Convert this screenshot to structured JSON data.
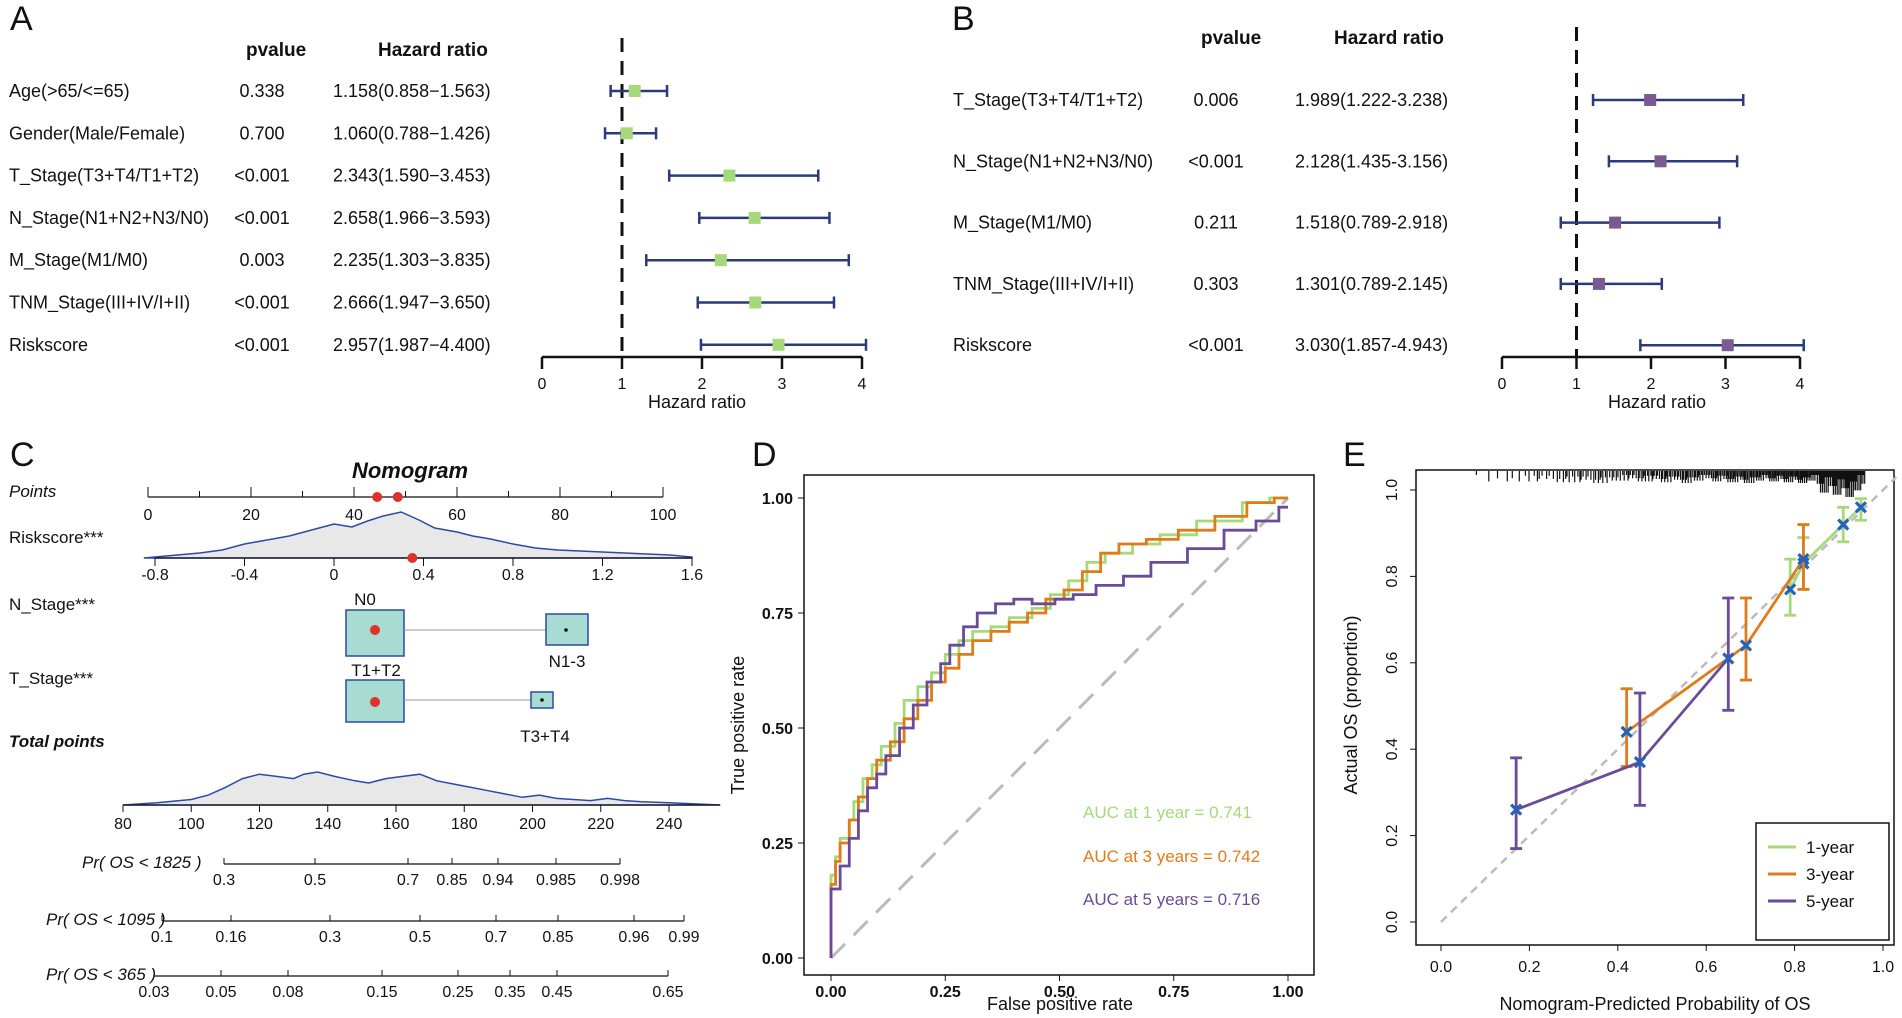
{
  "panels": {
    "a": "A",
    "b": "B",
    "c": "C",
    "d": "D",
    "e": "E"
  },
  "chart_data": [
    {
      "type": "forest",
      "panel": "A",
      "headers": {
        "pvalue": "pvalue",
        "hr": "Hazard ratio"
      },
      "xlabel": "Hazard ratio",
      "xlim": [
        0,
        4
      ],
      "xticks": [
        "0",
        "1",
        "2",
        "3",
        "4"
      ],
      "reference": 1,
      "rows": [
        {
          "label": "Age(>65/<=65)",
          "p": "0.338",
          "hr_text": "1.158(0.858−1.563)",
          "hr": 1.158,
          "lo": 0.858,
          "hi": 1.563
        },
        {
          "label": "Gender(Male/Female)",
          "p": "0.700",
          "hr_text": "1.060(0.788−1.426)",
          "hr": 1.06,
          "lo": 0.788,
          "hi": 1.426
        },
        {
          "label": "T_Stage(T3+T4/T1+T2)",
          "p": "<0.001",
          "hr_text": "2.343(1.590−3.453)",
          "hr": 2.343,
          "lo": 1.59,
          "hi": 3.453
        },
        {
          "label": "N_Stage(N1+N2+N3/N0)",
          "p": "<0.001",
          "hr_text": "2.658(1.966−3.593)",
          "hr": 2.658,
          "lo": 1.966,
          "hi": 3.593
        },
        {
          "label": "M_Stage(M1/M0)",
          "p": "0.003",
          "hr_text": "2.235(1.303−3.835)",
          "hr": 2.235,
          "lo": 1.303,
          "hi": 3.835
        },
        {
          "label": "TNM_Stage(III+IV/I+II)",
          "p": "<0.001",
          "hr_text": "2.666(1.947−3.650)",
          "hr": 2.666,
          "lo": 1.947,
          "hi": 3.65
        },
        {
          "label": "Riskscore",
          "p": "<0.001",
          "hr_text": "2.957(1.987−4.400)",
          "hr": 2.957,
          "lo": 1.987,
          "hi": 4.4
        }
      ]
    },
    {
      "type": "forest",
      "panel": "B",
      "headers": {
        "pvalue": "pvalue",
        "hr": "Hazard ratio"
      },
      "xlabel": "Hazard ratio",
      "xlim": [
        0,
        4
      ],
      "xticks": [
        "0",
        "1",
        "2",
        "3",
        "4"
      ],
      "reference": 1,
      "rows": [
        {
          "label": "T_Stage(T3+T4/T1+T2)",
          "p": "0.006",
          "hr_text": "1.989(1.222-3.238)",
          "hr": 1.989,
          "lo": 1.222,
          "hi": 3.238
        },
        {
          "label": "N_Stage(N1+N2+N3/N0)",
          "p": "<0.001",
          "hr_text": "2.128(1.435-3.156)",
          "hr": 2.128,
          "lo": 1.435,
          "hi": 3.156
        },
        {
          "label": "M_Stage(M1/M0)",
          "p": "0.211",
          "hr_text": "1.518(0.789-2.918)",
          "hr": 1.518,
          "lo": 0.789,
          "hi": 2.918
        },
        {
          "label": "TNM_Stage(III+IV/I+II)",
          "p": "0.303",
          "hr_text": "1.301(0.789-2.145)",
          "hr": 1.301,
          "lo": 0.789,
          "hi": 2.145
        },
        {
          "label": "Riskscore",
          "p": "<0.001",
          "hr_text": "3.030(1.857-4.943)",
          "hr": 3.03,
          "lo": 1.857,
          "hi": 4.943
        }
      ]
    },
    {
      "type": "nomogram",
      "panel": "C",
      "title": "Nomogram",
      "points_label": "Points",
      "points_ticks": [
        "0",
        "20",
        "40",
        "60",
        "80",
        "100"
      ],
      "riskscore_label": "Riskscore***",
      "riskscore_ticks": [
        "-0.8",
        "-0.4",
        "0",
        "0.4",
        "0.8",
        "1.2",
        "1.6"
      ],
      "n_stage_label": "N_Stage***",
      "n_stage_levels": [
        "N0",
        "N1-3"
      ],
      "t_stage_label": "T_Stage***",
      "t_stage_levels": [
        "T1+T2",
        "T3+T4"
      ],
      "total_label": "Total points",
      "total_ticks": [
        "80",
        "100",
        "120",
        "140",
        "160",
        "180",
        "200",
        "220",
        "240"
      ],
      "pr_scales": [
        {
          "label": "Pr( OS < 1825 )",
          "ticks": [
            "0.3",
            "0.5",
            "0.7",
            "0.85",
            "0.94",
            "0.985",
            "0.998"
          ]
        },
        {
          "label": "Pr( OS < 1095 )",
          "ticks": [
            "0.1",
            "0.16",
            "0.3",
            "0.5",
            "0.7",
            "0.85",
            "0.96",
            "0.99"
          ]
        },
        {
          "label": "Pr( OS < 365 )",
          "ticks": [
            "0.03",
            "0.05",
            "0.08",
            "0.15",
            "0.25",
            "0.35",
            "0.45",
            "0.65"
          ]
        }
      ],
      "selected_points": [
        44.5,
        48.5
      ],
      "selected_riskscore": 0.35
    },
    {
      "type": "line",
      "panel": "D",
      "subtype": "roc",
      "xlabel": "False positive rate",
      "ylabel": "True positive rate",
      "xlim": [
        0,
        1
      ],
      "ylim": [
        0,
        1
      ],
      "xticks": [
        "0.00",
        "0.25",
        "0.50",
        "0.75",
        "1.00"
      ],
      "yticks": [
        "0.00",
        "0.25",
        "0.50",
        "0.75",
        "1.00"
      ],
      "series": [
        {
          "name": "AUC at 1 year",
          "auc_label": "AUC at 1 year  = 0.741",
          "color": "#a6d97a",
          "points": [
            [
              0,
              0
            ],
            [
              0,
              0.14
            ],
            [
              0.01,
              0.18
            ],
            [
              0.02,
              0.22
            ],
            [
              0.04,
              0.26
            ],
            [
              0.05,
              0.3
            ],
            [
              0.07,
              0.34
            ],
            [
              0.09,
              0.39
            ],
            [
              0.11,
              0.42
            ],
            [
              0.14,
              0.46
            ],
            [
              0.16,
              0.51
            ],
            [
              0.19,
              0.56
            ],
            [
              0.22,
              0.59
            ],
            [
              0.25,
              0.62
            ],
            [
              0.28,
              0.66
            ],
            [
              0.31,
              0.69
            ],
            [
              0.35,
              0.71
            ],
            [
              0.39,
              0.72
            ],
            [
              0.44,
              0.74
            ],
            [
              0.48,
              0.76
            ],
            [
              0.52,
              0.79
            ],
            [
              0.56,
              0.82
            ],
            [
              0.6,
              0.86
            ],
            [
              0.66,
              0.88
            ],
            [
              0.72,
              0.9
            ],
            [
              0.8,
              0.92
            ],
            [
              0.9,
              0.95
            ],
            [
              0.96,
              0.99
            ],
            [
              1,
              1
            ]
          ]
        },
        {
          "name": "AUC at 3 years",
          "auc_label": "AUC at 3 years = 0.742",
          "color": "#e07b1a",
          "points": [
            [
              0,
              0
            ],
            [
              0,
              0.12
            ],
            [
              0.01,
              0.16
            ],
            [
              0.02,
              0.21
            ],
            [
              0.04,
              0.25
            ],
            [
              0.06,
              0.3
            ],
            [
              0.08,
              0.35
            ],
            [
              0.1,
              0.39
            ],
            [
              0.13,
              0.43
            ],
            [
              0.16,
              0.47
            ],
            [
              0.19,
              0.52
            ],
            [
              0.22,
              0.56
            ],
            [
              0.25,
              0.6
            ],
            [
              0.28,
              0.63
            ],
            [
              0.31,
              0.66
            ],
            [
              0.35,
              0.69
            ],
            [
              0.39,
              0.71
            ],
            [
              0.43,
              0.73
            ],
            [
              0.47,
              0.75
            ],
            [
              0.51,
              0.78
            ],
            [
              0.55,
              0.8
            ],
            [
              0.59,
              0.84
            ],
            [
              0.63,
              0.88
            ],
            [
              0.69,
              0.9
            ],
            [
              0.76,
              0.91
            ],
            [
              0.84,
              0.93
            ],
            [
              0.91,
              0.96
            ],
            [
              0.97,
              0.99
            ],
            [
              1,
              1
            ]
          ]
        },
        {
          "name": "AUC at 5 years",
          "auc_label": "AUC at 5 years = 0.716",
          "color": "#6a4b98",
          "points": [
            [
              0,
              0
            ],
            [
              0,
              0.11
            ],
            [
              0.02,
              0.15
            ],
            [
              0.04,
              0.2
            ],
            [
              0.06,
              0.26
            ],
            [
              0.08,
              0.32
            ],
            [
              0.1,
              0.37
            ],
            [
              0.12,
              0.4
            ],
            [
              0.15,
              0.44
            ],
            [
              0.18,
              0.5
            ],
            [
              0.21,
              0.55
            ],
            [
              0.24,
              0.6
            ],
            [
              0.26,
              0.64
            ],
            [
              0.29,
              0.68
            ],
            [
              0.32,
              0.72
            ],
            [
              0.36,
              0.75
            ],
            [
              0.4,
              0.77
            ],
            [
              0.44,
              0.78
            ],
            [
              0.49,
              0.77
            ],
            [
              0.53,
              0.78
            ],
            [
              0.58,
              0.79
            ],
            [
              0.64,
              0.81
            ],
            [
              0.7,
              0.83
            ],
            [
              0.78,
              0.86
            ],
            [
              0.86,
              0.89
            ],
            [
              0.93,
              0.93
            ],
            [
              0.98,
              0.95
            ],
            [
              1,
              0.98
            ]
          ]
        }
      ]
    },
    {
      "type": "line",
      "panel": "E",
      "subtype": "calibration",
      "xlabel": "Nomogram-Predicted Probability of OS",
      "ylabel": "Actual OS (proportion)",
      "xlim": [
        0,
        1
      ],
      "ylim": [
        0,
        1
      ],
      "xticks": [
        "0.0",
        "0.2",
        "0.4",
        "0.6",
        "0.8",
        "1.0"
      ],
      "yticks": [
        "0.0",
        "0.2",
        "0.4",
        "0.6",
        "0.8",
        "1.0"
      ],
      "series": [
        {
          "name": "1-year",
          "color": "#a6d97a",
          "points": [
            {
              "x": 0.79,
              "y": 0.77,
              "lo": 0.71,
              "hi": 0.84
            },
            {
              "x": 0.82,
              "y": 0.83,
              "lo": 0.77,
              "hi": 0.89
            },
            {
              "x": 0.91,
              "y": 0.92,
              "lo": 0.88,
              "hi": 0.96
            },
            {
              "x": 0.95,
              "y": 0.96,
              "lo": 0.93,
              "hi": 0.98
            }
          ]
        },
        {
          "name": "3-year",
          "color": "#e07b1a",
          "points": [
            {
              "x": 0.42,
              "y": 0.44,
              "lo": 0.36,
              "hi": 0.54
            },
            {
              "x": 0.69,
              "y": 0.64,
              "lo": 0.56,
              "hi": 0.75
            },
            {
              "x": 0.82,
              "y": 0.84,
              "lo": 0.77,
              "hi": 0.92
            }
          ]
        },
        {
          "name": "5-year",
          "color": "#6a4b98",
          "points": [
            {
              "x": 0.17,
              "y": 0.26,
              "lo": 0.17,
              "hi": 0.38
            },
            {
              "x": 0.45,
              "y": 0.37,
              "lo": 0.27,
              "hi": 0.53
            },
            {
              "x": 0.65,
              "y": 0.61,
              "lo": 0.49,
              "hi": 0.75
            }
          ]
        }
      ]
    }
  ]
}
